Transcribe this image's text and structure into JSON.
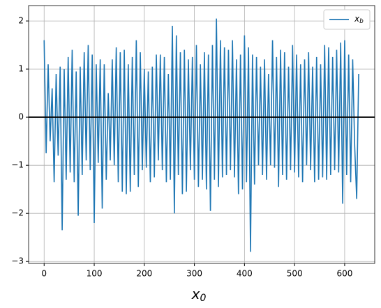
{
  "chart_data": {
    "type": "line",
    "xlabel": "x_0",
    "x": [
      0,
      4,
      8,
      12,
      16,
      20,
      24,
      28,
      32,
      36,
      40,
      44,
      48,
      52,
      56,
      60,
      64,
      68,
      72,
      76,
      80,
      84,
      88,
      92,
      96,
      100,
      104,
      108,
      112,
      116,
      120,
      124,
      128,
      132,
      136,
      140,
      144,
      148,
      152,
      156,
      160,
      164,
      168,
      172,
      176,
      180,
      184,
      188,
      192,
      196,
      200,
      204,
      208,
      212,
      216,
      220,
      224,
      228,
      232,
      236,
      240,
      244,
      248,
      252,
      256,
      260,
      264,
      268,
      272,
      276,
      280,
      284,
      288,
      292,
      296,
      300,
      304,
      308,
      312,
      316,
      320,
      324,
      328,
      332,
      336,
      340,
      344,
      348,
      352,
      356,
      360,
      364,
      368,
      372,
      376,
      380,
      384,
      388,
      392,
      396,
      400,
      404,
      408,
      412,
      416,
      420,
      424,
      428,
      432,
      436,
      440,
      444,
      448,
      452,
      456,
      460,
      464,
      468,
      472,
      476,
      480,
      484,
      488,
      492,
      496,
      500,
      504,
      508,
      512,
      516,
      520,
      524,
      528,
      532,
      536,
      540,
      544,
      548,
      552,
      556,
      560,
      564,
      568,
      572,
      576,
      580,
      584,
      588,
      592,
      596,
      600,
      604,
      608,
      612,
      616,
      620,
      624,
      628
    ],
    "series": [
      {
        "name": "x_b",
        "color": "#1f77b4",
        "values": [
          1.6,
          -0.75,
          1.1,
          -0.5,
          0.6,
          -1.35,
          0.9,
          -0.8,
          1.05,
          -2.35,
          1.0,
          -1.3,
          1.25,
          -1.15,
          1.4,
          -1.35,
          0.95,
          -2.05,
          1.05,
          -1.2,
          1.35,
          -0.9,
          1.5,
          -1.1,
          1.3,
          -2.2,
          1.1,
          -0.95,
          1.2,
          -1.9,
          1.1,
          -1.3,
          0.5,
          -0.9,
          1.2,
          -1.0,
          1.45,
          -1.35,
          1.35,
          -1.55,
          1.4,
          -1.6,
          1.1,
          -1.55,
          1.25,
          -1.2,
          1.6,
          -1.45,
          1.35,
          -1.1,
          1.0,
          -1.05,
          0.95,
          -1.35,
          1.05,
          -1.25,
          1.3,
          -0.9,
          1.3,
          -1.1,
          1.25,
          -1.35,
          0.9,
          -1.3,
          1.9,
          -2.0,
          1.7,
          -1.2,
          1.35,
          -1.6,
          1.4,
          -1.55,
          1.2,
          -1.1,
          1.25,
          -1.3,
          1.5,
          -1.45,
          1.1,
          -1.3,
          1.35,
          -1.5,
          1.3,
          -1.95,
          1.5,
          -1.3,
          2.05,
          -1.45,
          1.6,
          -1.25,
          1.45,
          -1.2,
          1.4,
          -1.1,
          1.6,
          -1.25,
          1.2,
          -1.6,
          1.3,
          -1.5,
          1.7,
          -1.35,
          1.45,
          -2.8,
          1.3,
          -1.4,
          1.25,
          -1.0,
          1.05,
          -1.2,
          1.2,
          -1.3,
          0.9,
          -1.0,
          1.6,
          -1.05,
          1.25,
          -1.45,
          1.4,
          -1.2,
          1.35,
          -1.3,
          1.05,
          -1.1,
          1.5,
          -1.15,
          1.3,
          -1.25,
          1.1,
          -1.35,
          1.2,
          -1.0,
          1.35,
          -1.1,
          1.05,
          -1.35,
          1.25,
          -1.3,
          1.1,
          -1.25,
          1.5,
          -1.3,
          1.45,
          -1.2,
          1.25,
          -1.1,
          1.4,
          -1.15,
          1.55,
          -1.8,
          1.6,
          -1.2,
          1.3,
          -1.35,
          1.2,
          -0.6,
          -1.7,
          0.9
        ]
      }
    ],
    "xlim": [
      -31,
      660
    ],
    "ylim": [
      -3.04,
      2.32
    ],
    "xticks": [
      0,
      100,
      200,
      300,
      400,
      500,
      600
    ],
    "yticks": [
      {
        "value": -3,
        "label": "−3"
      },
      {
        "value": -2,
        "label": "−2"
      },
      {
        "value": -1,
        "label": "−1"
      },
      0,
      1,
      2
    ],
    "hline": 0,
    "grid": true,
    "legend": "upper right"
  }
}
